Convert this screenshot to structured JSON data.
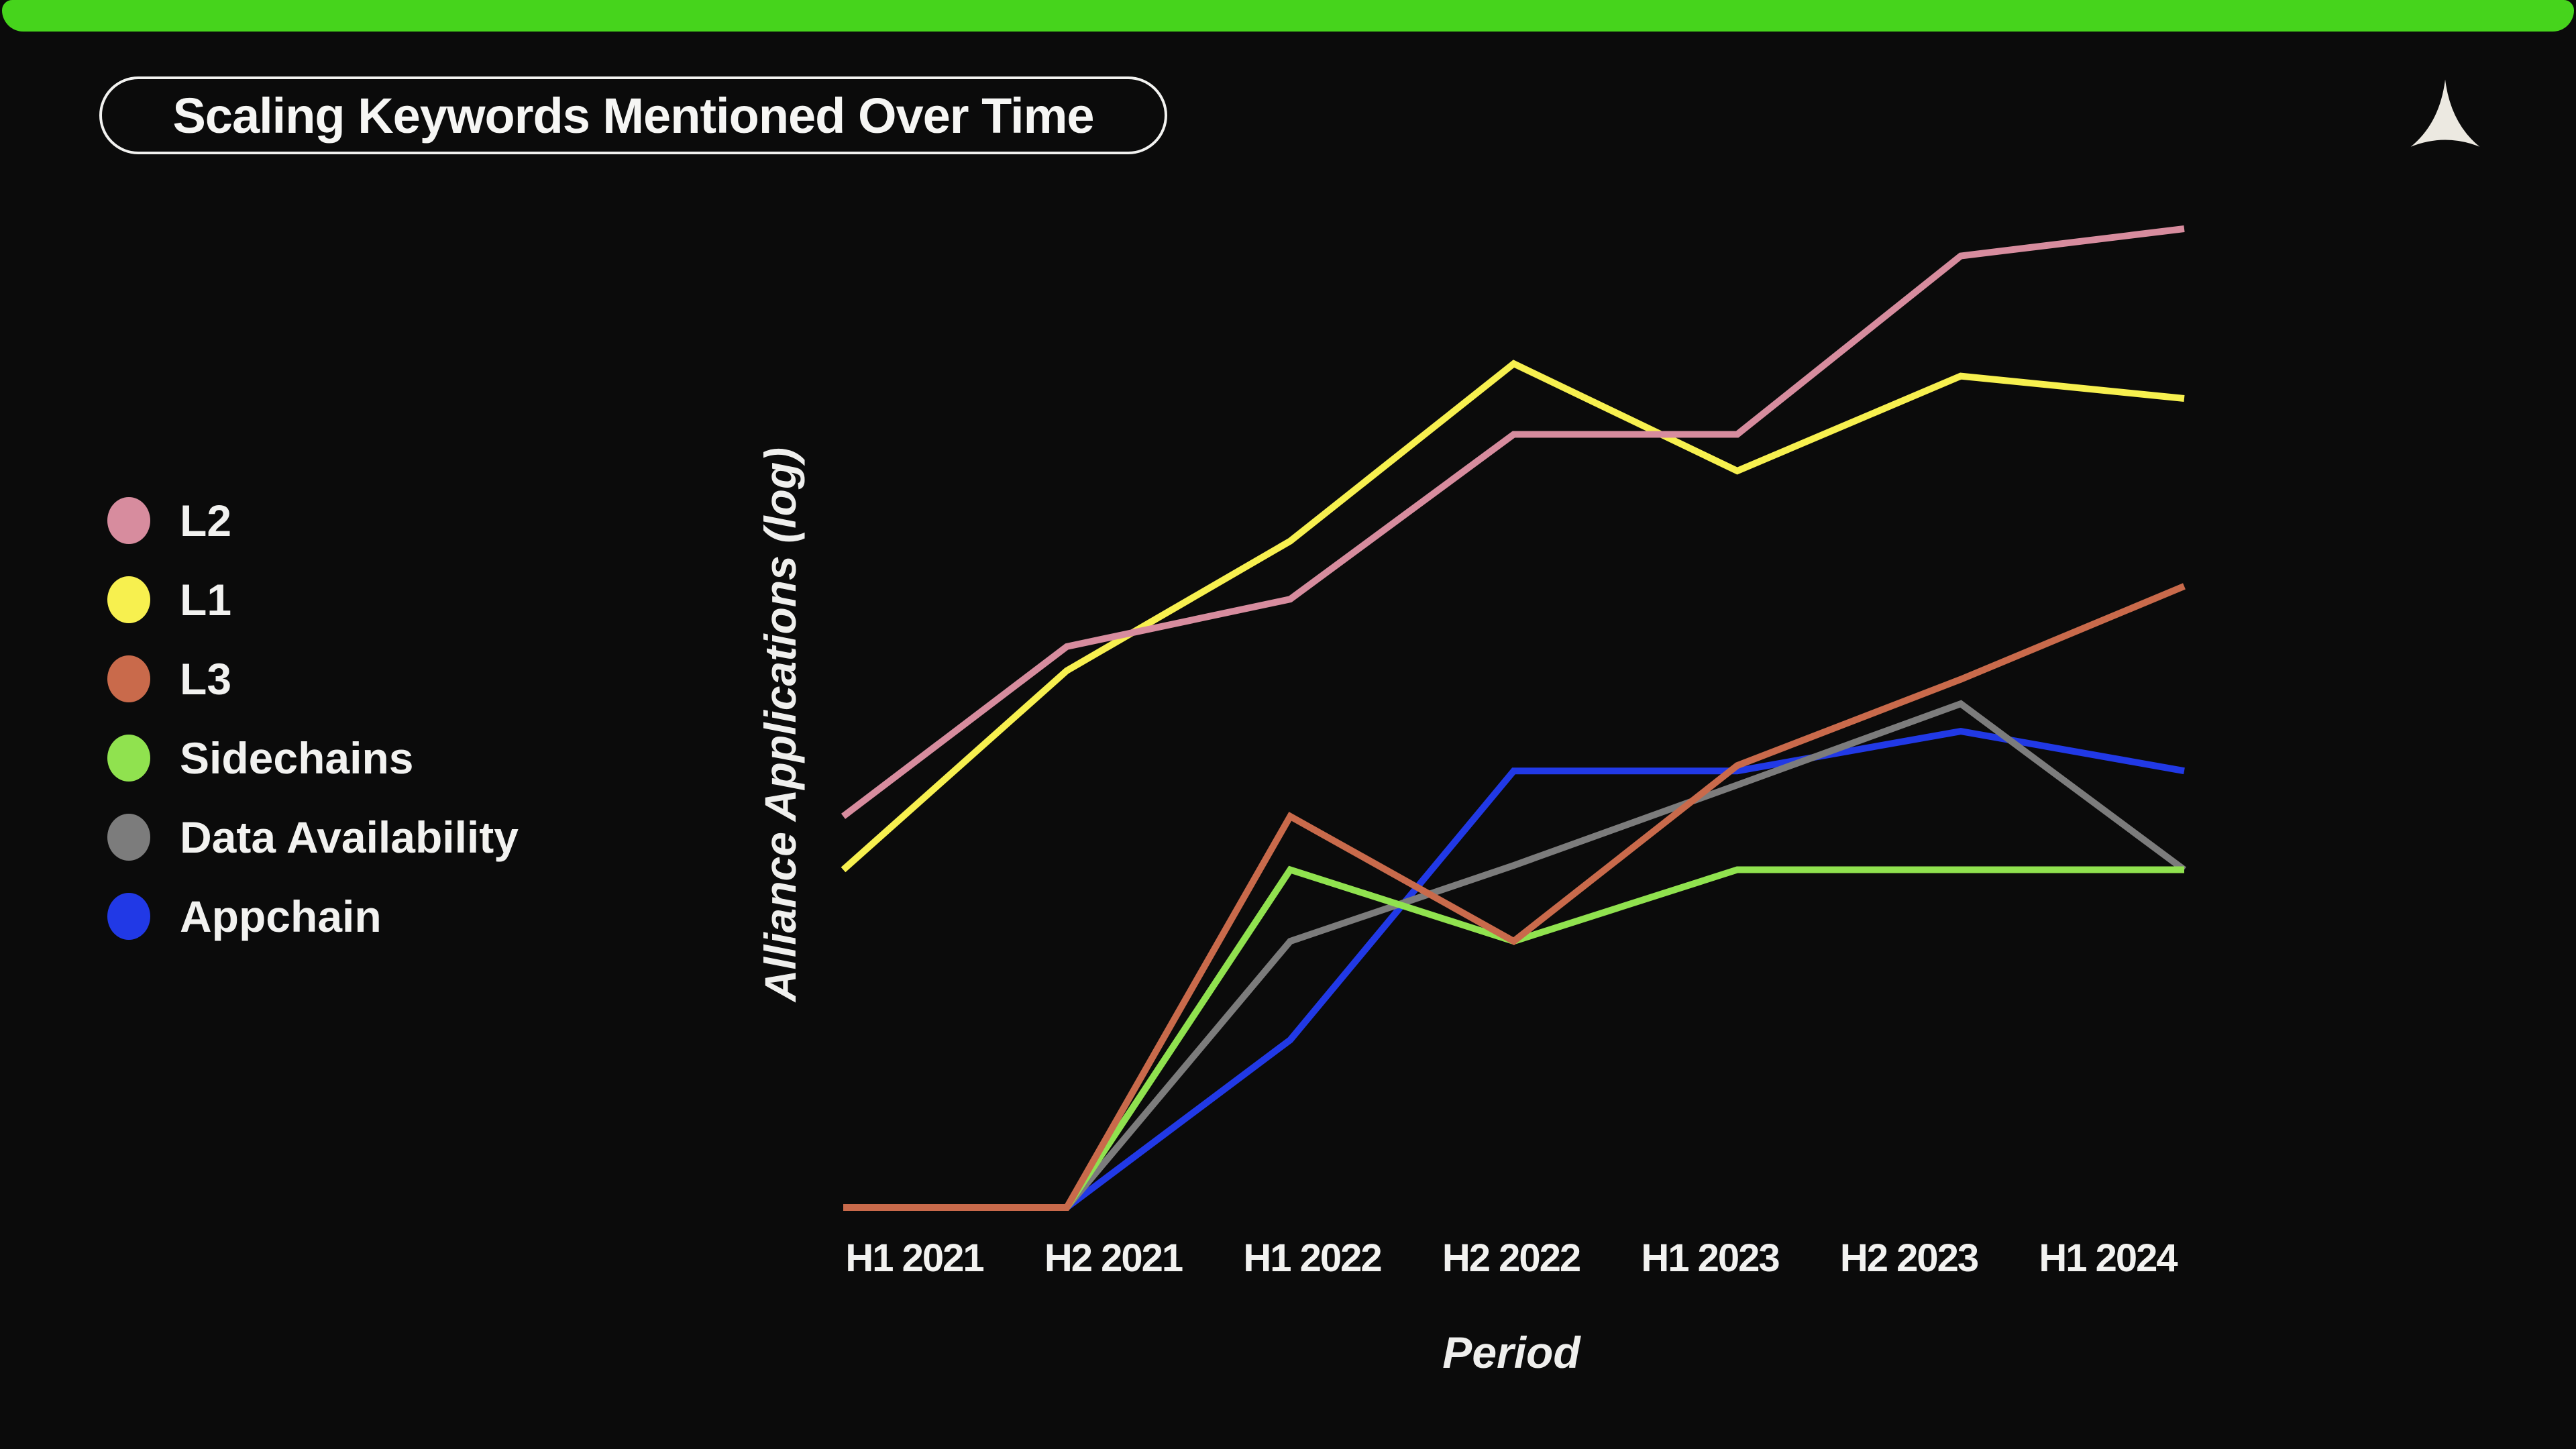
{
  "header": {
    "accent_bar_color": "#46D41C",
    "logo_icon": "alliance-concave-triangle-logo",
    "logo_color": "#ECE9E1"
  },
  "chart_data": {
    "type": "line",
    "title": "Scaling Keywords Mentioned Over Time",
    "xlabel": "Period",
    "ylabel": "Alliance Applications (log)",
    "y_scale": "log",
    "y_tick_labels_visible": false,
    "grid": false,
    "legend_position": "left",
    "background_color": "#0B0B0B",
    "categories": [
      "H1 2021",
      "H2 2021",
      "H1 2022",
      "H2 2022",
      "H1 2023",
      "H2 2023",
      "H1 2024"
    ],
    "series": [
      {
        "name": "L2",
        "color": "#D78C9E",
        "values": [
          6.3,
          14,
          17.5,
          38,
          38,
          88,
          100
        ]
      },
      {
        "name": "L1",
        "color": "#F7F04F",
        "values": [
          4.9,
          12.5,
          23,
          53,
          32,
          50,
          45
        ]
      },
      {
        "name": "L3",
        "color": "#C96A4B",
        "values": [
          1,
          1,
          6.3,
          3.5,
          8,
          12,
          18.6
        ]
      },
      {
        "name": "Sidechains",
        "color": "#90E24F",
        "values": [
          1,
          1,
          4.9,
          3.5,
          4.9,
          4.9,
          4.9
        ]
      },
      {
        "name": "Data Availability",
        "color": "#7C7C7C",
        "values": [
          1,
          1,
          3.5,
          5,
          7.3,
          10.7,
          4.9
        ]
      },
      {
        "name": "Appchain",
        "color": "#2139E6",
        "values": [
          1,
          1,
          2.2,
          7.8,
          7.8,
          9.4,
          7.8
        ]
      }
    ],
    "y_values_estimated": true,
    "ylim_estimated": [
      1,
      100
    ]
  }
}
